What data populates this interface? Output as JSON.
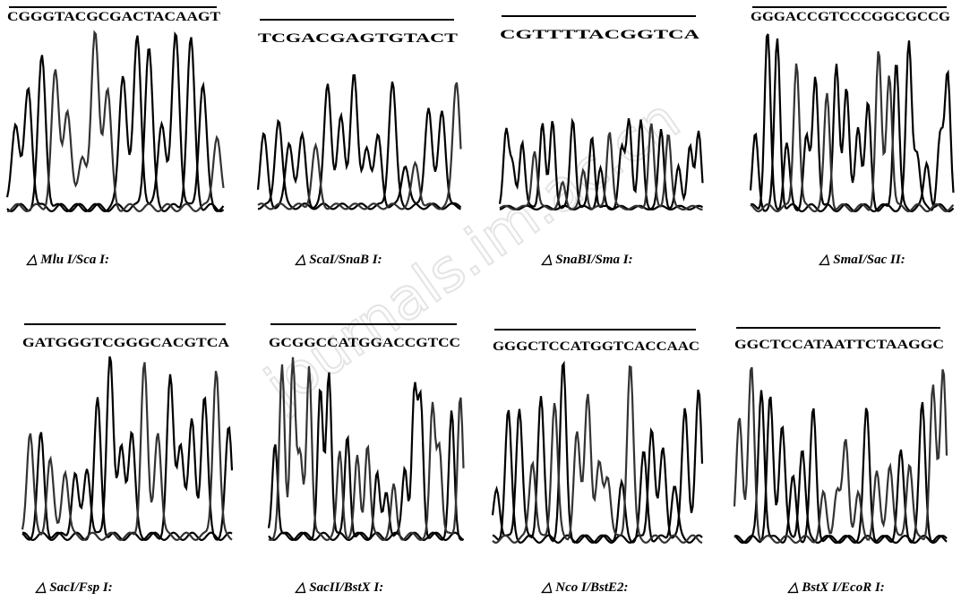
{
  "watermark": "journals.im.ac.cn",
  "panels": [
    {
      "sequence": "CGGGTACGCGACTACAAGT",
      "caption": "△ Mlu I/Sca I:"
    },
    {
      "sequence": "TCGACGAGTGTACT",
      "caption": "△ ScaI/SnaB I:"
    },
    {
      "sequence": "CGTTTTACGGTCA",
      "caption": "△ SnaBI/Sma I:"
    },
    {
      "sequence": "GGGACCGTCCCGGCGCCG",
      "caption": "△ SmaI/Sac II:"
    },
    {
      "sequence": "GATGGGTCGGGCACGTCA",
      "caption": "△ SacI/Fsp I:"
    },
    {
      "sequence": "GCGGCCATGGACCGTCC",
      "caption": "△ SacII/BstX I:"
    },
    {
      "sequence": "GGGCTCCATGGTCACCAAC",
      "caption": "△ Nco I/BstE2:"
    },
    {
      "sequence": "GGCTCCATAATTCTAAGGC",
      "caption": "△ BstX I/EcoR I:"
    }
  ]
}
